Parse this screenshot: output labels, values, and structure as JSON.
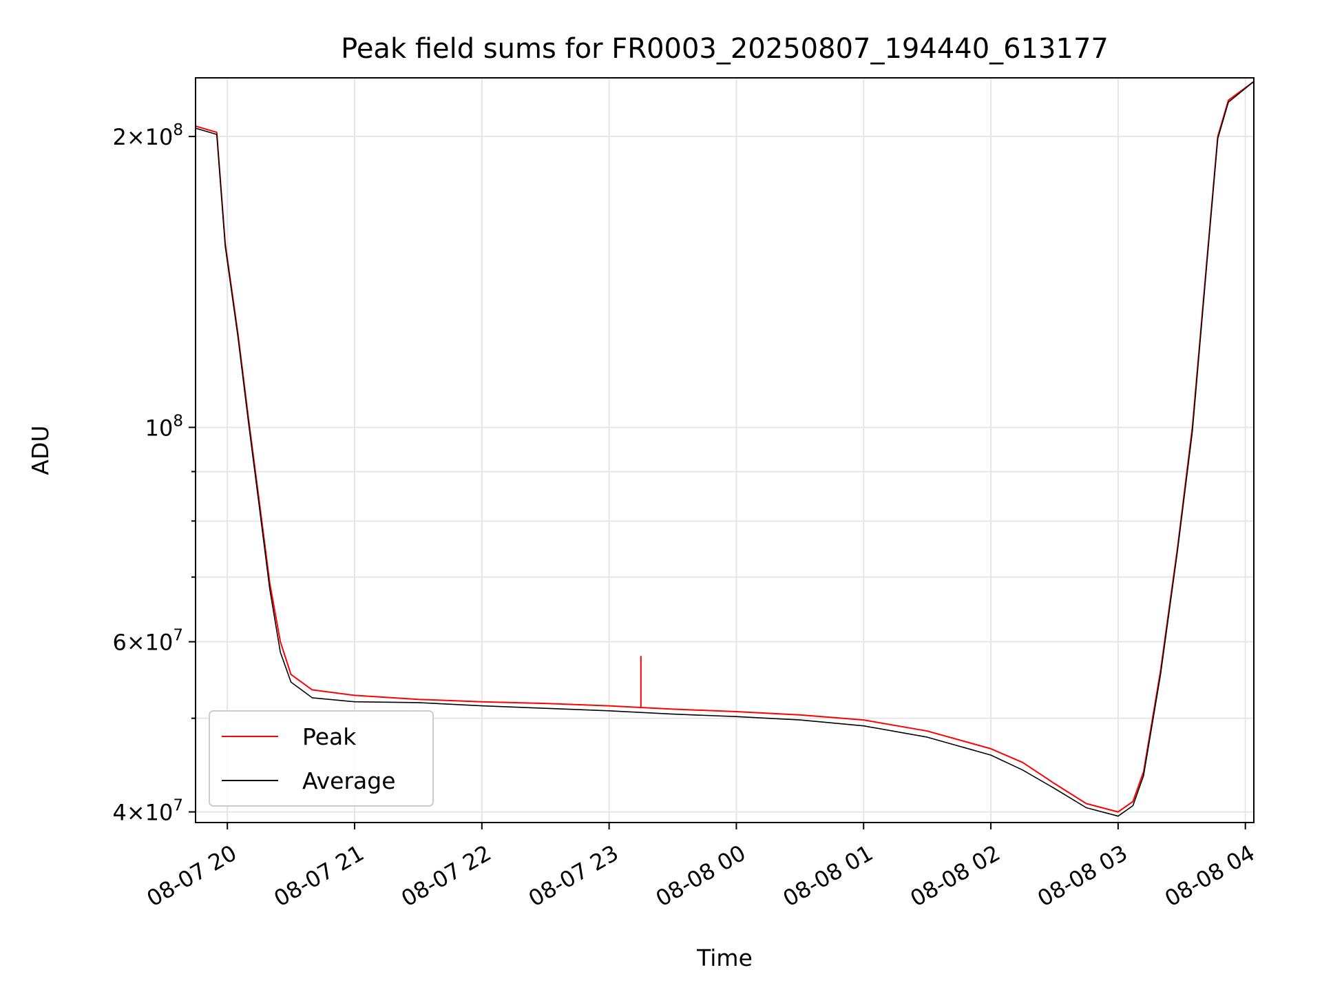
{
  "chart_data": {
    "type": "line",
    "title": "Peak field sums for FR0003_20250807_194440_613177",
    "xlabel": "Time",
    "ylabel": "ADU",
    "yscale": "log",
    "ylim": [
      39000000,
      230000000
    ],
    "xlim": [
      "2025-08-07 19:45",
      "2025-08-08 04:04"
    ],
    "grid": true,
    "legend_position": "lower-left",
    "x_ticks": [
      {
        "value": "2025-08-07 20:00",
        "label": "08-07 20"
      },
      {
        "value": "2025-08-07 21:00",
        "label": "08-07 21"
      },
      {
        "value": "2025-08-07 22:00",
        "label": "08-07 22"
      },
      {
        "value": "2025-08-07 23:00",
        "label": "08-07 23"
      },
      {
        "value": "2025-08-08 00:00",
        "label": "08-08 00"
      },
      {
        "value": "2025-08-08 01:00",
        "label": "08-08 01"
      },
      {
        "value": "2025-08-08 02:00",
        "label": "08-08 02"
      },
      {
        "value": "2025-08-08 03:00",
        "label": "08-08 03"
      },
      {
        "value": "2025-08-08 04:00",
        "label": "08-08 04"
      }
    ],
    "y_ticks": [
      {
        "value": 40000000,
        "mantissa": "4",
        "exponent": "7"
      },
      {
        "value": 60000000,
        "mantissa": "6",
        "exponent": "7"
      },
      {
        "value": 100000000,
        "mantissa": "",
        "exponent": "8"
      },
      {
        "value": 200000000,
        "mantissa": "2",
        "exponent": "8"
      }
    ],
    "y_minor_ticks": [
      50000000,
      70000000,
      80000000,
      90000000
    ],
    "series": [
      {
        "name": "Peak",
        "color": "#ff0000",
        "points": [
          [
            "2025-08-07 19:45",
            205000000
          ],
          [
            "2025-08-07 19:55",
            202000000
          ],
          [
            "2025-08-07 19:59",
            155000000
          ],
          [
            "2025-08-07 20:05",
            125000000
          ],
          [
            "2025-08-07 20:10",
            102000000
          ],
          [
            "2025-08-07 20:15",
            84000000
          ],
          [
            "2025-08-07 20:20",
            69000000
          ],
          [
            "2025-08-07 20:25",
            60000000
          ],
          [
            "2025-08-07 20:30",
            55500000
          ],
          [
            "2025-08-07 20:40",
            53500000
          ],
          [
            "2025-08-07 21:00",
            52800000
          ],
          [
            "2025-08-07 21:30",
            52300000
          ],
          [
            "2025-08-07 22:00",
            52000000
          ],
          [
            "2025-08-07 22:30",
            51800000
          ],
          [
            "2025-08-07 23:00",
            51500000
          ],
          [
            "2025-08-07 23:30",
            51100000
          ],
          [
            "2025-08-08 00:00",
            50800000
          ],
          [
            "2025-08-08 00:30",
            50400000
          ],
          [
            "2025-08-08 01:00",
            49800000
          ],
          [
            "2025-08-08 01:30",
            48500000
          ],
          [
            "2025-08-08 02:00",
            46500000
          ],
          [
            "2025-08-08 02:15",
            45000000
          ],
          [
            "2025-08-08 02:30",
            42800000
          ],
          [
            "2025-08-08 02:45",
            40800000
          ],
          [
            "2025-08-08 03:00",
            40000000
          ],
          [
            "2025-08-08 03:07",
            41000000
          ],
          [
            "2025-08-08 03:12",
            44000000
          ],
          [
            "2025-08-08 03:20",
            56000000
          ],
          [
            "2025-08-08 03:28",
            75000000
          ],
          [
            "2025-08-08 03:35",
            100000000
          ],
          [
            "2025-08-08 03:42",
            150000000
          ],
          [
            "2025-08-08 03:47",
            200000000
          ],
          [
            "2025-08-08 03:52",
            218000000
          ],
          [
            "2025-08-08 04:04",
            228000000
          ]
        ]
      },
      {
        "name": "Average",
        "color": "#000000",
        "points": [
          [
            "2025-08-07 19:45",
            204000000
          ],
          [
            "2025-08-07 19:55",
            201000000
          ],
          [
            "2025-08-07 19:59",
            154000000
          ],
          [
            "2025-08-07 20:05",
            124000000
          ],
          [
            "2025-08-07 20:10",
            101000000
          ],
          [
            "2025-08-07 20:15",
            83000000
          ],
          [
            "2025-08-07 20:20",
            68000000
          ],
          [
            "2025-08-07 20:25",
            58500000
          ],
          [
            "2025-08-07 20:30",
            54500000
          ],
          [
            "2025-08-07 20:40",
            52500000
          ],
          [
            "2025-08-07 21:00",
            52000000
          ],
          [
            "2025-08-07 21:30",
            51900000
          ],
          [
            "2025-08-07 22:00",
            51500000
          ],
          [
            "2025-08-07 22:30",
            51200000
          ],
          [
            "2025-08-07 23:00",
            50900000
          ],
          [
            "2025-08-07 23:30",
            50500000
          ],
          [
            "2025-08-08 00:00",
            50200000
          ],
          [
            "2025-08-08 00:30",
            49800000
          ],
          [
            "2025-08-08 01:00",
            49100000
          ],
          [
            "2025-08-08 01:30",
            47800000
          ],
          [
            "2025-08-08 02:00",
            45800000
          ],
          [
            "2025-08-08 02:15",
            44200000
          ],
          [
            "2025-08-08 02:30",
            42300000
          ],
          [
            "2025-08-08 02:45",
            40400000
          ],
          [
            "2025-08-08 03:00",
            39600000
          ],
          [
            "2025-08-08 03:07",
            40600000
          ],
          [
            "2025-08-08 03:12",
            43600000
          ],
          [
            "2025-08-08 03:20",
            55500000
          ],
          [
            "2025-08-08 03:28",
            74500000
          ],
          [
            "2025-08-08 03:35",
            99000000
          ],
          [
            "2025-08-08 03:42",
            149000000
          ],
          [
            "2025-08-08 03:47",
            199000000
          ],
          [
            "2025-08-08 03:52",
            217000000
          ],
          [
            "2025-08-08 04:04",
            228000000
          ]
        ]
      }
    ],
    "annotations": [
      {
        "series": "Peak",
        "x": "2025-08-07 23:15",
        "y": 58000000,
        "note_type": "spike"
      }
    ]
  }
}
